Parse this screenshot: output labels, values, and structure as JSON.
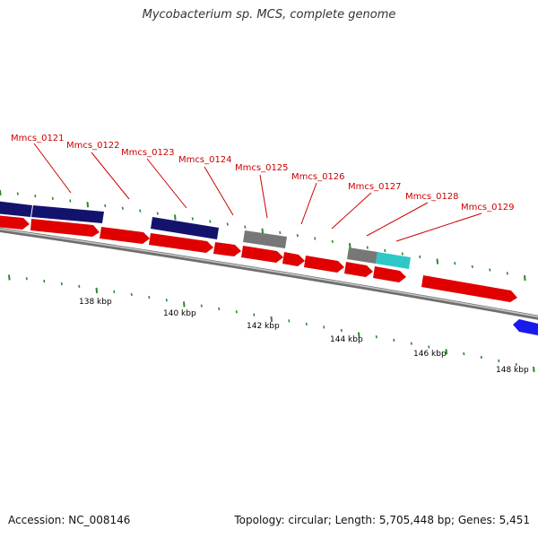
{
  "title": "Mycobacterium sp. MCS, complete genome",
  "footer": {
    "accession": "Accession: NC_008146",
    "summary": "Topology: circular; Length: 5,705,448 bp; Genes: 5,451"
  },
  "colors": {
    "forward_gene": "#e00000",
    "reverse_gene": "#13136e",
    "gray_gene": "#777777",
    "cyan_gene": "#2ec8c8",
    "blue_gene": "#1a1aee",
    "label": "#cc0000",
    "tick": "#2a8a2a",
    "backbone": "#888888"
  },
  "gene_labels": [
    "Mmcs_0121",
    "Mmcs_0122",
    "Mmcs_0123",
    "Mmcs_0124",
    "Mmcs_0125",
    "Mmcs_0126",
    "Mmcs_0127",
    "Mmcs_0128",
    "Mmcs_0129"
  ],
  "kbp_labels": [
    "138 kbp",
    "140 kbp",
    "142 kbp",
    "144 kbp",
    "146 kbp",
    "148 kbp"
  ]
}
